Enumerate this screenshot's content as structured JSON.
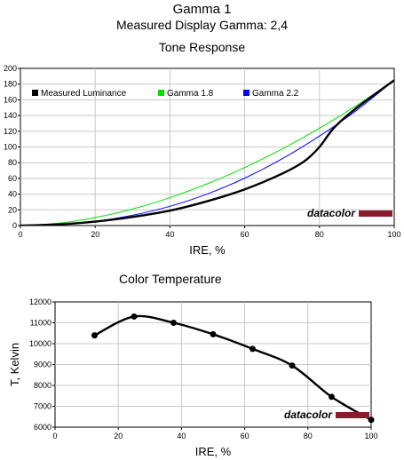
{
  "header": {
    "title": "Gamma 1",
    "subtitle": "Measured Display Gamma: 2,4"
  },
  "chart_data": [
    {
      "type": "line",
      "title": "Tone Response",
      "xlabel": "IRE, %",
      "ylabel": "",
      "xlim": [
        0,
        100
      ],
      "ylim": [
        0,
        200
      ],
      "x_ticks": [
        0,
        20,
        40,
        60,
        80,
        100
      ],
      "y_ticks": [
        0,
        20,
        40,
        60,
        80,
        100,
        120,
        140,
        160,
        180,
        200
      ],
      "grid": true,
      "legend_placement": "top-left",
      "brand": "datacolor",
      "series": [
        {
          "name": "Measured Luminance",
          "color": "#000000",
          "x": [
            0,
            10,
            20,
            30,
            40,
            50,
            60,
            70,
            76,
            80,
            84,
            90,
            100
          ],
          "values": [
            0,
            1.5,
            5,
            11,
            19,
            31,
            46,
            66,
            82,
            100,
            125,
            150,
            185
          ]
        },
        {
          "name": "Gamma 1.8",
          "color": "#00e000",
          "x": [
            0,
            10,
            20,
            30,
            40,
            50,
            60,
            70,
            80,
            90,
            100
          ],
          "values": [
            0,
            2.9,
            10.2,
            21,
            35.5,
            53.1,
            73.8,
            97.4,
            123.8,
            153,
            185
          ]
        },
        {
          "name": "Gamma 2.2",
          "color": "#0000ff",
          "x": [
            0,
            10,
            20,
            30,
            40,
            50,
            60,
            70,
            80,
            90,
            100
          ],
          "values": [
            0,
            1.2,
            5.4,
            13.1,
            24.5,
            40.2,
            60.3,
            84.9,
            113.9,
            146.8,
            185
          ]
        }
      ]
    },
    {
      "type": "line",
      "title": "Color Temperature",
      "xlabel": "IRE, %",
      "ylabel": "T, Kelvin",
      "xlim": [
        0,
        100
      ],
      "ylim": [
        6000,
        12000
      ],
      "x_ticks": [
        0,
        20,
        40,
        60,
        80,
        100
      ],
      "y_ticks": [
        6000,
        7000,
        8000,
        9000,
        10000,
        11000,
        12000
      ],
      "grid": true,
      "brand": "datacolor",
      "series": [
        {
          "color": "#000000",
          "x": [
            12.5,
            25,
            37.5,
            50,
            62.5,
            75,
            87.5,
            100
          ],
          "values": [
            10400,
            11300,
            11000,
            10450,
            9750,
            8950,
            7450,
            6350
          ]
        }
      ]
    }
  ]
}
